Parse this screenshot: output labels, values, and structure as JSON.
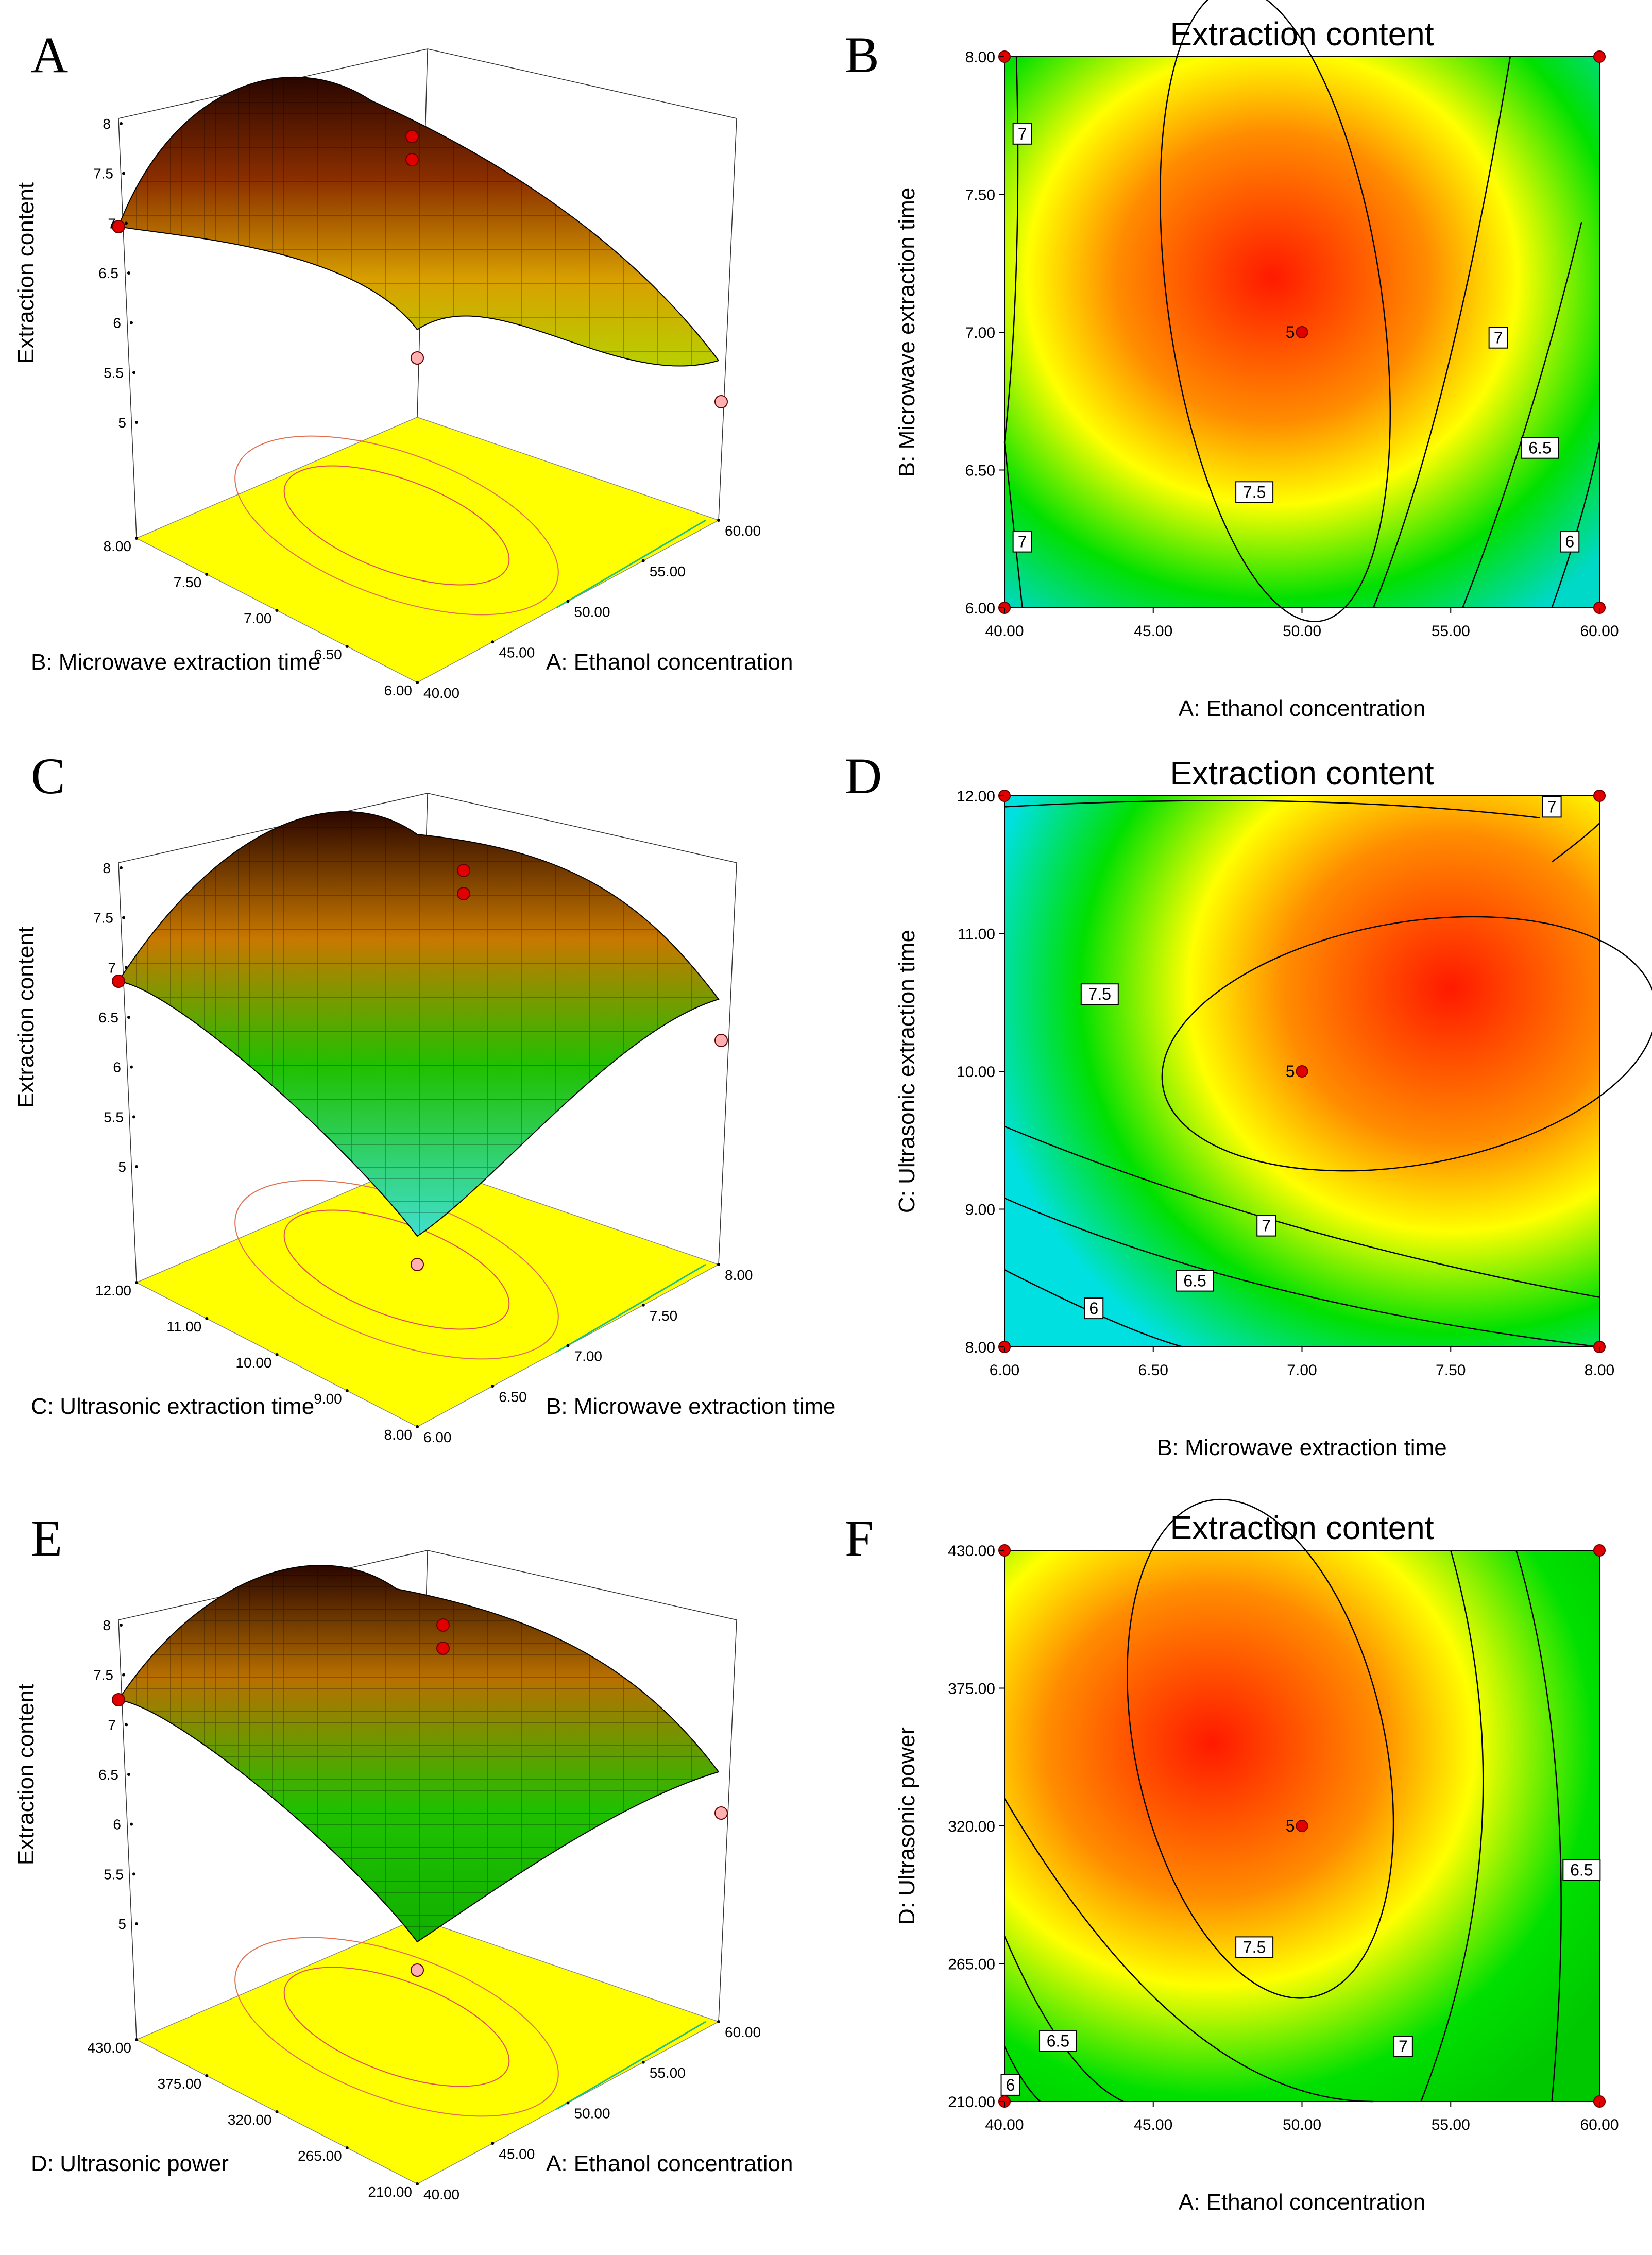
{
  "z_label": "Extraction content",
  "contour_title": "Extraction content",
  "center_label": "5",
  "colors": {
    "red": "#ff1a00",
    "orange": "#ff8c00",
    "yellow": "#ffff00",
    "green": "#00e000",
    "cyan": "#00e0e0",
    "dark_brown": "#2a0600"
  },
  "chart_data": [
    {
      "panel": "A",
      "type": "surface3d",
      "x_label": "A: Ethanol concentration",
      "x_ticks": [
        "40.00",
        "45.00",
        "50.00",
        "55.00",
        "60.00"
      ],
      "y_label": "B: Microwave extraction time",
      "y_ticks": [
        "6.00",
        "6.50",
        "7.00",
        "7.50",
        "8.00"
      ],
      "z_label": "Extraction content",
      "z_ticks": [
        "5",
        "5.5",
        "6",
        "6.5",
        "7",
        "7.5",
        "8"
      ],
      "zlim": [
        5,
        8
      ],
      "design_points": [
        7.9,
        7.85,
        6.85,
        5.8,
        5.6
      ]
    },
    {
      "panel": "B",
      "type": "contour",
      "title": "Extraction content",
      "x_label": "A: Ethanol concentration",
      "x_ticks": [
        "40.00",
        "45.00",
        "50.00",
        "55.00",
        "60.00"
      ],
      "xlim": [
        40,
        60
      ],
      "y_label": "B: Microwave extraction time",
      "y_ticks": [
        "6.00",
        "6.50",
        "7.00",
        "7.50",
        "8.00"
      ],
      "ylim": [
        6,
        8
      ],
      "contour_labels": [
        "7",
        "7",
        "7.5",
        "7",
        "6.5",
        "6"
      ],
      "contour_levels": [
        6,
        6.5,
        7,
        7.5
      ],
      "center": [
        50,
        7
      ],
      "center_label": "5",
      "corner_points": [
        [
          40,
          6
        ],
        [
          40,
          8
        ],
        [
          60,
          6
        ],
        [
          60,
          8
        ]
      ]
    },
    {
      "panel": "C",
      "type": "surface3d",
      "x_label": "B: Microwave extraction time",
      "x_ticks": [
        "6.00",
        "6.50",
        "7.00",
        "7.50",
        "8.00"
      ],
      "y_label": "C: Ultrasonic extraction time",
      "y_ticks": [
        "8.00",
        "9.00",
        "10.00",
        "11.00",
        "12.00"
      ],
      "z_label": "Extraction content",
      "z_ticks": [
        "5",
        "5.5",
        "6",
        "6.5",
        "7",
        "7.5",
        "8"
      ],
      "zlim": [
        5,
        8
      ],
      "design_points": [
        7.8,
        7.7,
        6.85,
        6.6,
        4.6
      ]
    },
    {
      "panel": "D",
      "type": "contour",
      "title": "Extraction content",
      "x_label": "B: Microwave extraction time",
      "x_ticks": [
        "6.00",
        "6.50",
        "7.00",
        "7.50",
        "8.00"
      ],
      "xlim": [
        6,
        8
      ],
      "y_label": "C: Ultrasonic extraction time",
      "y_ticks": [
        "8.00",
        "9.00",
        "10.00",
        "11.00",
        "12.00"
      ],
      "ylim": [
        8,
        12
      ],
      "contour_labels": [
        "7",
        "7.5",
        "7",
        "6.5",
        "6"
      ],
      "contour_levels": [
        6,
        6.5,
        7,
        7.5
      ],
      "center": [
        7,
        10
      ],
      "center_label": "5",
      "corner_points": [
        [
          6,
          8
        ],
        [
          6,
          12
        ],
        [
          8,
          8
        ],
        [
          8,
          12
        ]
      ]
    },
    {
      "panel": "E",
      "type": "surface3d",
      "x_label": "A: Ethanol concentration",
      "x_ticks": [
        "40.00",
        "45.00",
        "50.00",
        "55.00",
        "60.00"
      ],
      "y_label": "D: Ultrasonic power",
      "y_ticks": [
        "210.00",
        "265.00",
        "320.00",
        "375.00",
        "430.00"
      ],
      "z_label": "Extraction content",
      "z_ticks": [
        "5",
        "5.5",
        "6",
        "6.5",
        "7",
        "7.5",
        "8"
      ],
      "zlim": [
        5,
        8
      ],
      "design_points": [
        7.8,
        7.75,
        7.2,
        5.7,
        4.9
      ]
    },
    {
      "panel": "F",
      "type": "contour",
      "title": "Extraction content",
      "x_label": "A: Ethanol concentration",
      "x_ticks": [
        "40.00",
        "45.00",
        "50.00",
        "55.00",
        "60.00"
      ],
      "xlim": [
        40,
        60
      ],
      "y_label": "D: Ultrasonic power",
      "y_ticks": [
        "210.00",
        "265.00",
        "320.00",
        "375.00",
        "430.00"
      ],
      "ylim": [
        210,
        430
      ],
      "contour_labels": [
        "7.5",
        "7",
        "6.5",
        "6.5",
        "6"
      ],
      "contour_levels": [
        6,
        6.5,
        7,
        7.5
      ],
      "center": [
        50,
        320
      ],
      "center_label": "5",
      "corner_points": [
        [
          40,
          210
        ],
        [
          40,
          430
        ],
        [
          60,
          210
        ],
        [
          60,
          430
        ]
      ]
    }
  ]
}
